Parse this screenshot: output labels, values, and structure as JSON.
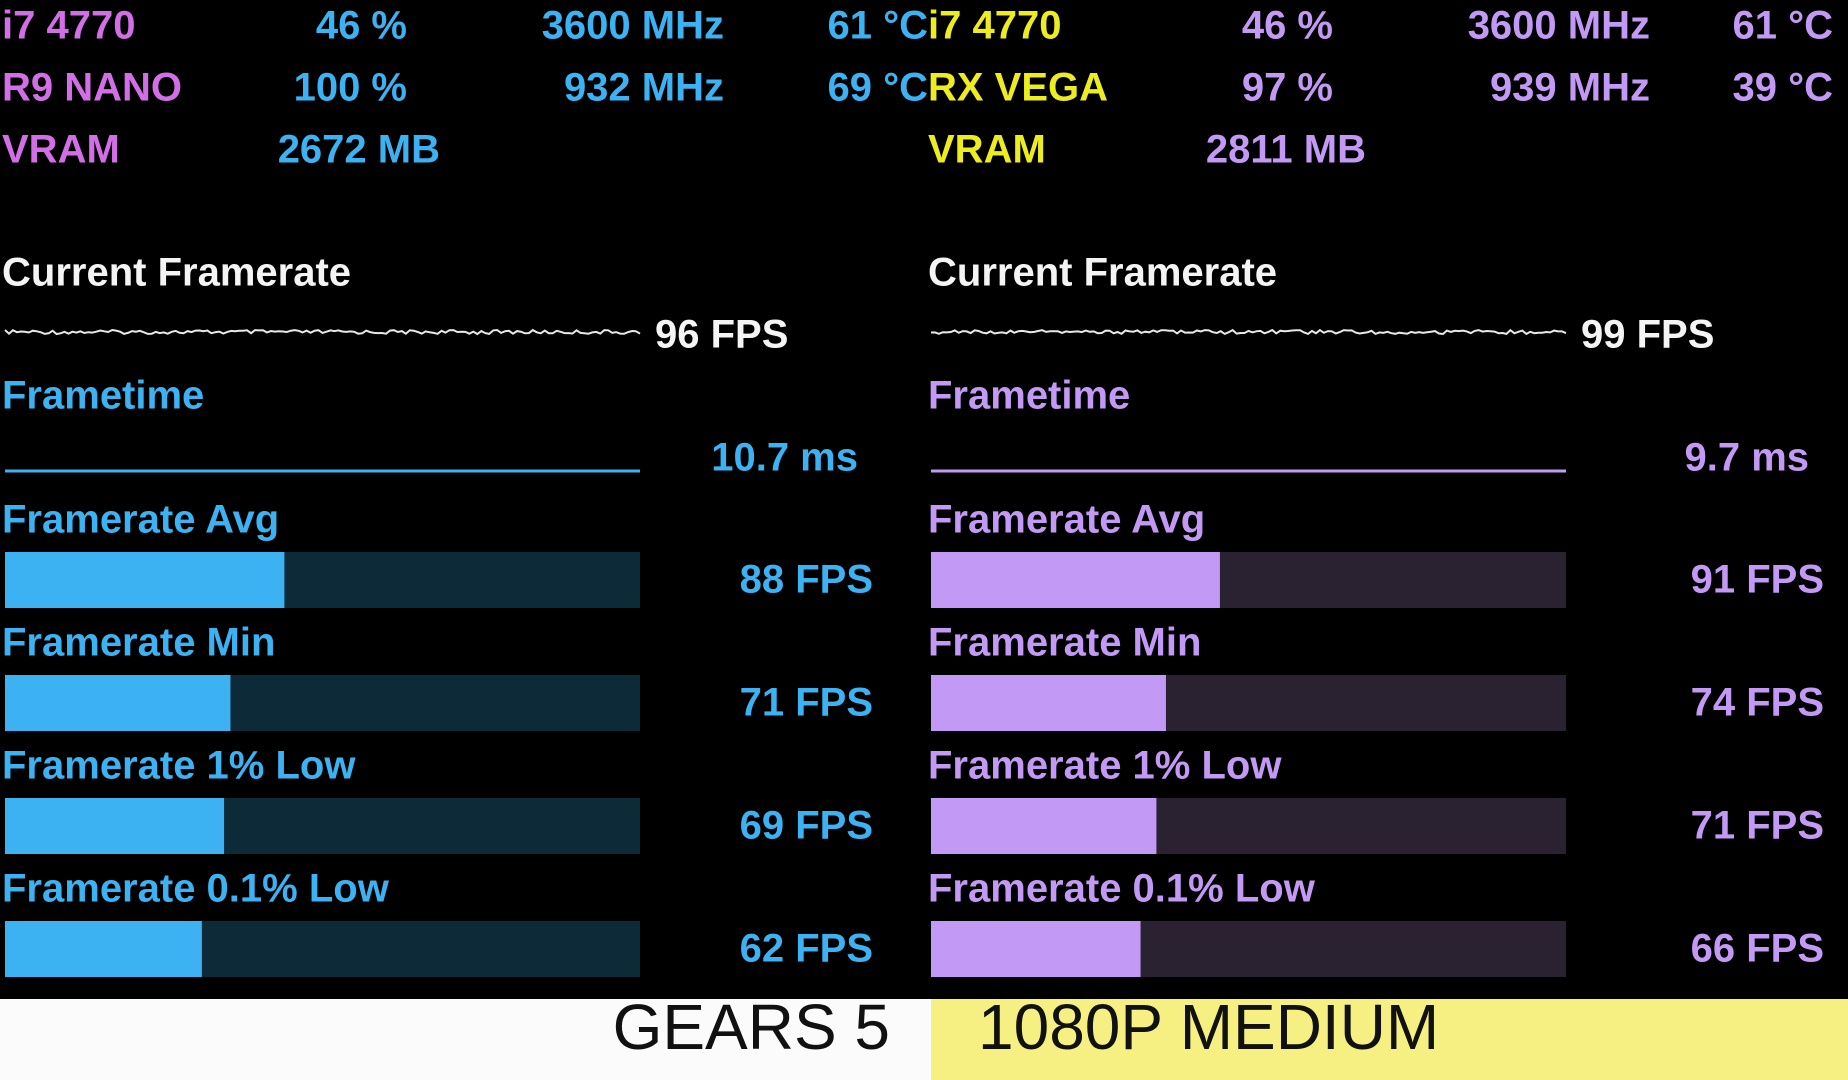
{
  "panels": [
    {
      "name_color": "#d36fe6",
      "value_color": "#3cb2f2",
      "track_color": "#0d2a38",
      "sensors": [
        {
          "name": "i7 4770",
          "usage": "46 %",
          "clock": "3600 MHz",
          "temp": "61 °C"
        },
        {
          "name": "R9 NANO",
          "usage": "100 %",
          "clock": "932 MHz",
          "temp": "69 °C"
        }
      ],
      "vram": {
        "label": "VRAM",
        "value": "2672 MB"
      },
      "current_framerate": {
        "label": "Current Framerate",
        "value": "96 FPS"
      },
      "frametime": {
        "label": "Frametime",
        "value": "10.7 ms"
      },
      "xlim": [
        0,
        200
      ],
      "bars": [
        {
          "label": "Framerate Avg",
          "value": 88,
          "value_label": "88 FPS"
        },
        {
          "label": "Framerate Min",
          "value": 71,
          "value_label": "71 FPS"
        },
        {
          "label": "Framerate 1% Low",
          "value": 69,
          "value_label": "69 FPS"
        },
        {
          "label": "Framerate 0.1% Low",
          "value": 62,
          "value_label": "62 FPS"
        }
      ]
    },
    {
      "name_color": "#ecec1e",
      "value_color": "#c299f4",
      "track_color": "#2a2230",
      "sensors": [
        {
          "name": "i7 4770",
          "usage": "46 %",
          "clock": "3600 MHz",
          "temp": "61 °C"
        },
        {
          "name": "RX VEGA",
          "usage": "97 %",
          "clock": "939 MHz",
          "temp": "39 °C"
        }
      ],
      "vram": {
        "label": "VRAM",
        "value": "2811 MB"
      },
      "current_framerate": {
        "label": "Current Framerate",
        "value": "99 FPS"
      },
      "frametime": {
        "label": "Frametime",
        "value": "9.7 ms"
      },
      "xlim": [
        0,
        200
      ],
      "bars": [
        {
          "label": "Framerate Avg",
          "value": 91,
          "value_label": "91 FPS"
        },
        {
          "label": "Framerate Min",
          "value": 74,
          "value_label": "74 FPS"
        },
        {
          "label": "Framerate 1% Low",
          "value": 71,
          "value_label": "71 FPS"
        },
        {
          "label": "Framerate 0.1% Low",
          "value": 66,
          "value_label": "66 FPS"
        }
      ]
    }
  ],
  "footer": {
    "game": "GEARS 5",
    "setting": "1080P MEDIUM"
  }
}
